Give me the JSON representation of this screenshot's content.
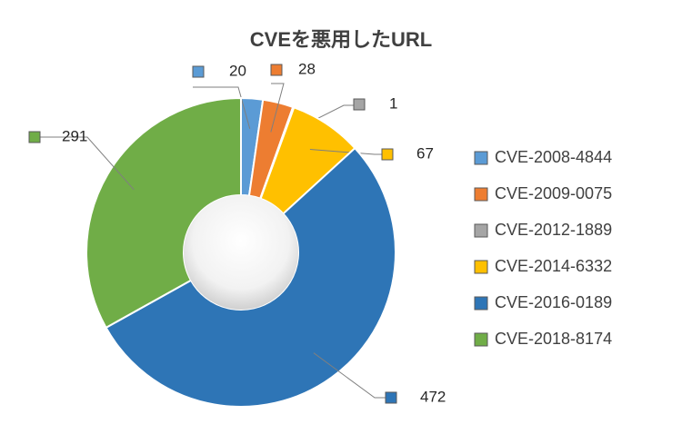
{
  "chart_data": {
    "type": "donut",
    "title": "CVEを悪用したURL",
    "categories": [
      "CVE-2008-4844",
      "CVE-2009-0075",
      "CVE-2012-1889",
      "CVE-2014-6332",
      "CVE-2016-0189",
      "CVE-2018-8174"
    ],
    "values": [
      20,
      28,
      1,
      67,
      472,
      291
    ],
    "colors": [
      "#5b9bd5",
      "#ed7d31",
      "#a5a5a5",
      "#ffc000",
      "#2e75b6",
      "#70ad47"
    ]
  }
}
